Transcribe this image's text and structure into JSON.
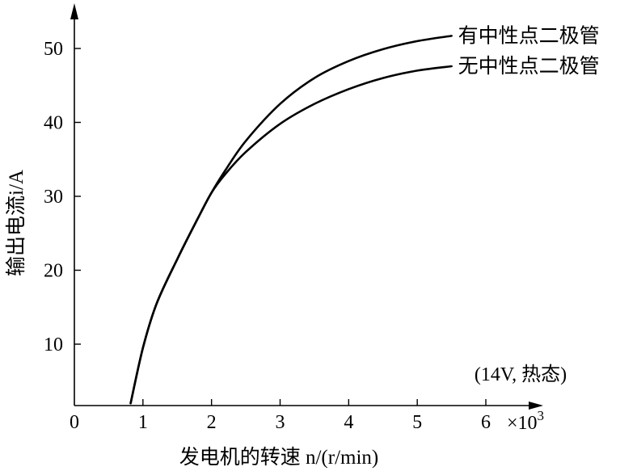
{
  "chart_data": {
    "type": "line",
    "title": "",
    "xlabel": "发电机的转速 n/(r/min)",
    "ylabel": "输出电流i/A",
    "x_multiplier": "×10",
    "x_multiplier_exp": "3",
    "xlim": [
      0,
      6.6
    ],
    "ylim": [
      2,
      56
    ],
    "x_ticks": [
      0,
      1,
      2,
      3,
      4,
      5,
      6
    ],
    "y_ticks": [
      10,
      20,
      30,
      40,
      50
    ],
    "annotation": "(14V, 热态)",
    "grid": false,
    "series": [
      {
        "name": "有中性点二极管",
        "x": [
          0.82,
          1.0,
          1.2,
          1.5,
          1.8,
          2.0,
          2.2,
          2.5,
          3.0,
          3.5,
          4.0,
          4.5,
          5.0,
          5.5
        ],
        "y": [
          2,
          9.5,
          15.5,
          21.5,
          27,
          30.5,
          33.5,
          37.5,
          42.5,
          46,
          48.3,
          49.9,
          51,
          51.7
        ]
      },
      {
        "name": "无中性点二极管",
        "x": [
          0.82,
          1.0,
          1.2,
          1.5,
          1.8,
          2.0,
          2.2,
          2.5,
          3.0,
          3.5,
          4.0,
          4.5,
          5.0,
          5.5
        ],
        "y": [
          2,
          9.5,
          15.5,
          21.5,
          27,
          30.5,
          33,
          36,
          39.8,
          42.5,
          44.5,
          46,
          47,
          47.6
        ]
      }
    ]
  }
}
